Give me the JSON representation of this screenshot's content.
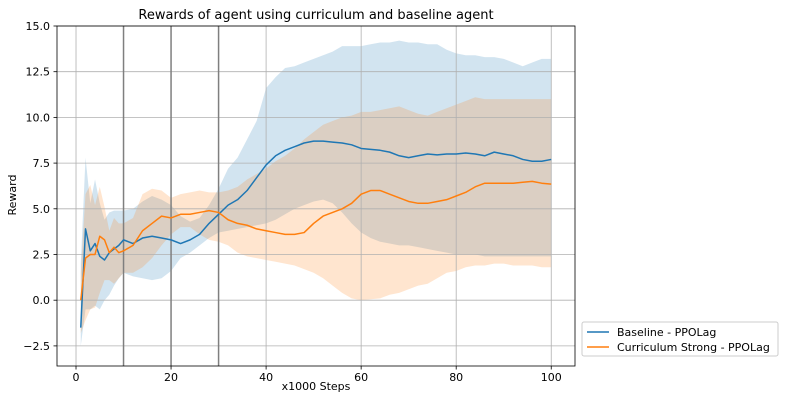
{
  "chart_data": {
    "type": "line",
    "title": "Rewards of agent using curriculum and baseline agent",
    "xlabel": "x1000 Steps",
    "ylabel": "Reward",
    "xlim": [
      -4,
      105
    ],
    "ylim": [
      -3.6,
      15
    ],
    "xticks": [
      0,
      20,
      40,
      60,
      80,
      100
    ],
    "yticks": [
      -2.5,
      0.0,
      2.5,
      5.0,
      7.5,
      10.0,
      12.5,
      15.0
    ],
    "ytick_labels": [
      "−2.5",
      "0.0",
      "2.5",
      "5.0",
      "7.5",
      "10.0",
      "12.5",
      "15.0"
    ],
    "grid": true,
    "legend_position": "outside-bottom-right",
    "vertical_lines": [
      10,
      20,
      30
    ],
    "vertical_line_color": "#7f7f7f",
    "x": [
      1,
      2,
      3,
      4,
      5,
      6,
      7,
      8,
      9,
      10,
      12,
      14,
      16,
      18,
      20,
      22,
      24,
      26,
      28,
      30,
      32,
      34,
      36,
      38,
      40,
      42,
      44,
      46,
      48,
      50,
      52,
      54,
      56,
      58,
      60,
      62,
      64,
      66,
      68,
      70,
      72,
      74,
      76,
      78,
      80,
      82,
      84,
      86,
      88,
      90,
      92,
      94,
      96,
      98,
      100
    ],
    "series": [
      {
        "name": "Baseline - PPOLag",
        "color": "#1f77b4",
        "values": [
          -1.5,
          3.9,
          2.7,
          3.1,
          2.4,
          2.2,
          2.6,
          2.8,
          3.0,
          3.3,
          3.1,
          3.4,
          3.5,
          3.4,
          3.3,
          3.1,
          3.3,
          3.6,
          4.2,
          4.7,
          5.2,
          5.5,
          6.0,
          6.7,
          7.4,
          7.9,
          8.2,
          8.4,
          8.6,
          8.7,
          8.7,
          8.65,
          8.6,
          8.5,
          8.3,
          8.25,
          8.2,
          8.1,
          7.9,
          7.8,
          7.9,
          8.0,
          7.95,
          8.0,
          8.0,
          8.05,
          8.0,
          7.9,
          8.1,
          8.0,
          7.9,
          7.7,
          7.6,
          7.6,
          7.7
        ],
        "lower": [
          -2.5,
          -0.5,
          -0.5,
          -0.3,
          -0.5,
          0.0,
          0.3,
          0.8,
          1.2,
          1.5,
          1.3,
          1.2,
          1.1,
          1.2,
          1.6,
          2.3,
          2.6,
          3.0,
          3.4,
          3.7,
          3.8,
          3.9,
          4.0,
          4.1,
          4.2,
          4.4,
          4.7,
          5.0,
          5.2,
          5.4,
          5.5,
          5.3,
          4.8,
          4.2,
          3.7,
          3.4,
          3.2,
          3.1,
          3.0,
          3.0,
          2.9,
          2.8,
          2.7,
          2.6,
          2.5,
          2.5,
          2.5,
          2.4,
          2.4,
          2.4,
          2.4,
          2.4,
          2.4,
          2.4,
          2.4
        ],
        "upper": [
          2.0,
          7.8,
          5.3,
          6.6,
          5.3,
          4.4,
          4.8,
          4.9,
          4.9,
          4.9,
          5.0,
          5.4,
          5.7,
          5.5,
          5.2,
          4.6,
          4.3,
          4.5,
          5.2,
          6.1,
          7.2,
          7.8,
          8.8,
          9.8,
          11.6,
          12.2,
          12.7,
          12.8,
          13.0,
          13.2,
          13.4,
          13.6,
          13.9,
          13.9,
          13.9,
          14.0,
          14.1,
          14.1,
          14.2,
          14.1,
          14.1,
          14.0,
          14.0,
          13.7,
          13.5,
          13.4,
          13.4,
          13.3,
          13.3,
          13.2,
          13.0,
          12.8,
          13.0,
          13.2,
          13.2
        ]
      },
      {
        "name": "Curriculum Strong - PPOLag",
        "color": "#ff7f0e",
        "values": [
          0.0,
          2.3,
          2.5,
          2.5,
          3.5,
          3.3,
          2.6,
          2.9,
          2.6,
          2.7,
          3.0,
          3.8,
          4.2,
          4.6,
          4.5,
          4.7,
          4.7,
          4.8,
          4.9,
          4.8,
          4.4,
          4.2,
          4.1,
          3.9,
          3.8,
          3.7,
          3.6,
          3.6,
          3.7,
          4.2,
          4.6,
          4.8,
          5.0,
          5.3,
          5.8,
          6.0,
          6.0,
          5.8,
          5.6,
          5.4,
          5.3,
          5.3,
          5.4,
          5.5,
          5.7,
          5.9,
          6.2,
          6.4,
          6.4,
          6.4,
          6.4,
          6.45,
          6.5,
          6.4,
          6.35
        ],
        "lower": [
          -1.8,
          -1.1,
          -0.5,
          -0.4,
          0.4,
          1.1,
          1.1,
          0.9,
          1.2,
          1.5,
          1.5,
          1.8,
          2.3,
          3.0,
          3.6,
          4.0,
          4.0,
          3.6,
          3.3,
          3.2,
          3.0,
          2.6,
          2.4,
          2.3,
          2.2,
          2.1,
          2.0,
          1.9,
          1.7,
          1.5,
          1.2,
          0.8,
          0.4,
          0.1,
          0.0,
          0.05,
          0.1,
          0.3,
          0.4,
          0.6,
          0.8,
          0.9,
          1.2,
          1.5,
          1.6,
          1.8,
          1.9,
          1.9,
          2.0,
          2.0,
          1.9,
          1.9,
          1.9,
          1.8,
          1.8
        ],
        "upper": [
          1.5,
          5.8,
          6.3,
          5.2,
          6.2,
          5.1,
          3.8,
          4.5,
          4.2,
          4.2,
          4.5,
          5.8,
          6.1,
          6.0,
          5.6,
          5.8,
          5.9,
          6.0,
          5.9,
          5.9,
          6.0,
          6.2,
          6.6,
          6.9,
          7.2,
          7.6,
          7.9,
          8.3,
          8.8,
          9.2,
          9.6,
          9.8,
          10.0,
          10.1,
          10.3,
          10.3,
          10.4,
          10.5,
          10.6,
          10.4,
          10.2,
          10.1,
          10.3,
          10.5,
          10.7,
          10.9,
          11.1,
          11.0,
          11.0,
          11.0,
          11.0,
          11.0,
          11.0,
          11.0,
          11.0
        ]
      }
    ]
  }
}
